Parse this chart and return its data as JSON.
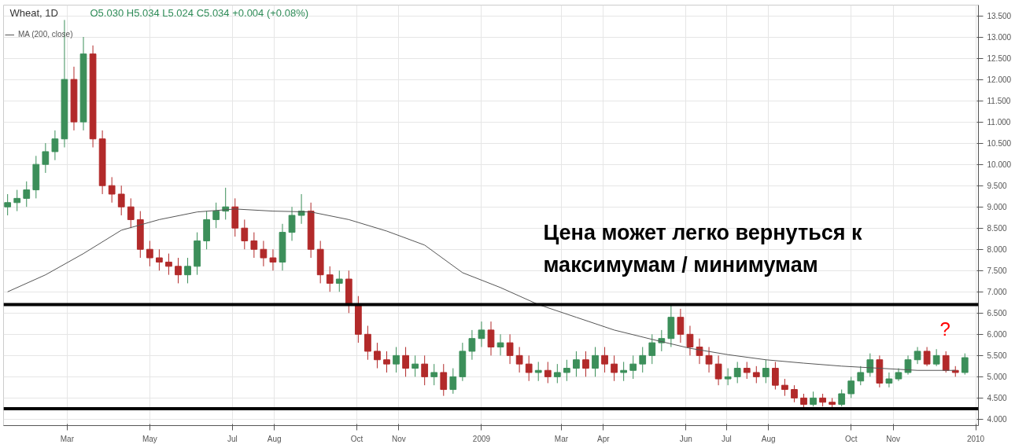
{
  "chart_data": {
    "type": "candlestick",
    "title": "Wheat, 1D",
    "subtitle": "O5.030  H5.034  L5.024  C5.034  +0.004 (+0.08%)",
    "x": [
      "2008-01-17",
      "2008-01-24",
      "2008-01-31",
      "2008-02-07",
      "2008-02-14",
      "2008-02-21",
      "2008-02-28",
      "2008-03-06",
      "2008-03-13",
      "2008-03-20",
      "2008-03-27",
      "2008-04-03",
      "2008-04-10",
      "2008-04-17",
      "2008-04-24",
      "2008-05-01",
      "2008-05-08",
      "2008-05-15",
      "2008-05-22",
      "2008-05-29",
      "2008-06-05",
      "2008-06-12",
      "2008-06-19",
      "2008-06-26",
      "2008-07-03",
      "2008-07-10",
      "2008-07-17",
      "2008-07-24",
      "2008-07-31",
      "2008-08-07",
      "2008-08-14",
      "2008-08-21",
      "2008-08-28",
      "2008-09-04",
      "2008-09-11",
      "2008-09-18",
      "2008-09-25",
      "2008-10-02",
      "2008-10-09",
      "2008-10-16",
      "2008-10-23",
      "2008-10-30",
      "2008-11-06",
      "2008-11-13",
      "2008-11-20",
      "2008-11-27",
      "2008-12-04",
      "2008-12-11",
      "2008-12-18",
      "2008-12-25",
      "2009-01-01",
      "2009-01-08",
      "2009-01-15",
      "2009-01-22",
      "2009-01-29",
      "2009-02-05",
      "2009-02-12",
      "2009-02-19",
      "2009-02-26",
      "2009-03-05",
      "2009-03-12",
      "2009-03-19",
      "2009-03-26",
      "2009-04-02",
      "2009-04-09",
      "2009-04-16",
      "2009-04-23",
      "2009-04-30",
      "2009-05-07",
      "2009-05-14",
      "2009-05-21",
      "2009-05-28",
      "2009-06-04",
      "2009-06-11",
      "2009-06-18",
      "2009-06-25",
      "2009-07-02",
      "2009-07-09",
      "2009-07-16",
      "2009-07-23",
      "2009-07-30",
      "2009-08-06",
      "2009-08-13",
      "2009-08-20",
      "2009-08-27",
      "2009-09-03",
      "2009-09-10",
      "2009-09-17",
      "2009-09-24",
      "2009-10-01",
      "2009-10-08",
      "2009-10-15",
      "2009-10-22",
      "2009-10-29",
      "2009-11-05",
      "2009-11-12",
      "2009-11-19",
      "2009-11-26",
      "2009-12-03",
      "2009-12-10",
      "2009-12-17",
      "2009-12-24"
    ],
    "ohlc": [
      [
        9.0,
        9.3,
        8.8,
        9.1
      ],
      [
        9.1,
        9.4,
        8.9,
        9.2
      ],
      [
        9.2,
        9.6,
        9.0,
        9.4
      ],
      [
        9.4,
        10.2,
        9.2,
        10.0
      ],
      [
        10.0,
        10.5,
        9.8,
        10.3
      ],
      [
        10.3,
        10.8,
        10.1,
        10.6
      ],
      [
        10.6,
        13.4,
        10.4,
        12.0
      ],
      [
        12.0,
        12.3,
        10.8,
        11.0
      ],
      [
        11.0,
        13.0,
        10.8,
        12.6
      ],
      [
        12.6,
        12.8,
        10.4,
        10.6
      ],
      [
        10.6,
        10.8,
        9.3,
        9.5
      ],
      [
        9.5,
        9.7,
        9.1,
        9.3
      ],
      [
        9.3,
        9.5,
        8.8,
        9.0
      ],
      [
        9.0,
        9.2,
        8.5,
        8.7
      ],
      [
        8.7,
        8.9,
        7.8,
        8.0
      ],
      [
        8.0,
        8.2,
        7.6,
        7.8
      ],
      [
        7.8,
        8.0,
        7.5,
        7.7
      ],
      [
        7.7,
        7.9,
        7.4,
        7.6
      ],
      [
        7.6,
        7.8,
        7.2,
        7.4
      ],
      [
        7.4,
        7.8,
        7.2,
        7.6
      ],
      [
        7.6,
        8.4,
        7.4,
        8.2
      ],
      [
        8.2,
        8.9,
        8.0,
        8.7
      ],
      [
        8.7,
        9.1,
        8.5,
        8.9
      ],
      [
        8.9,
        9.45,
        8.7,
        9.0
      ],
      [
        9.0,
        9.2,
        8.3,
        8.5
      ],
      [
        8.5,
        8.7,
        8.0,
        8.2
      ],
      [
        8.2,
        8.4,
        7.8,
        8.0
      ],
      [
        8.0,
        8.2,
        7.6,
        7.8
      ],
      [
        7.8,
        8.0,
        7.5,
        7.7
      ],
      [
        7.7,
        8.6,
        7.5,
        8.4
      ],
      [
        8.4,
        9.0,
        8.2,
        8.8
      ],
      [
        8.8,
        9.3,
        8.6,
        8.9
      ],
      [
        8.9,
        9.1,
        7.8,
        8.0
      ],
      [
        8.0,
        8.2,
        7.2,
        7.4
      ],
      [
        7.4,
        7.6,
        7.0,
        7.2
      ],
      [
        7.2,
        7.5,
        7.0,
        7.3
      ],
      [
        7.3,
        7.5,
        6.5,
        6.7
      ],
      [
        6.7,
        6.9,
        5.8,
        6.0
      ],
      [
        6.0,
        6.2,
        5.4,
        5.6
      ],
      [
        5.6,
        5.8,
        5.2,
        5.4
      ],
      [
        5.4,
        5.6,
        5.1,
        5.3
      ],
      [
        5.3,
        5.7,
        5.1,
        5.5
      ],
      [
        5.5,
        5.7,
        5.0,
        5.2
      ],
      [
        5.2,
        5.5,
        5.0,
        5.3
      ],
      [
        5.3,
        5.5,
        4.8,
        5.0
      ],
      [
        5.0,
        5.3,
        4.8,
        5.1
      ],
      [
        5.1,
        5.3,
        4.55,
        4.7
      ],
      [
        4.7,
        5.2,
        4.6,
        5.0
      ],
      [
        5.0,
        5.8,
        4.9,
        5.6
      ],
      [
        5.6,
        6.1,
        5.4,
        5.9
      ],
      [
        5.9,
        6.3,
        5.7,
        6.1
      ],
      [
        6.1,
        6.3,
        5.5,
        5.7
      ],
      [
        5.7,
        6.0,
        5.5,
        5.8
      ],
      [
        5.8,
        6.0,
        5.3,
        5.5
      ],
      [
        5.5,
        5.7,
        5.1,
        5.3
      ],
      [
        5.3,
        5.5,
        4.9,
        5.1
      ],
      [
        5.1,
        5.35,
        4.9,
        5.15
      ],
      [
        5.15,
        5.35,
        4.85,
        5.0
      ],
      [
        5.0,
        5.3,
        4.85,
        5.1
      ],
      [
        5.1,
        5.4,
        4.9,
        5.2
      ],
      [
        5.2,
        5.6,
        5.0,
        5.4
      ],
      [
        5.4,
        5.6,
        5.0,
        5.2
      ],
      [
        5.2,
        5.7,
        5.0,
        5.5
      ],
      [
        5.5,
        5.7,
        5.1,
        5.3
      ],
      [
        5.3,
        5.5,
        4.9,
        5.1
      ],
      [
        5.1,
        5.35,
        4.9,
        5.15
      ],
      [
        5.15,
        5.5,
        4.95,
        5.3
      ],
      [
        5.3,
        5.7,
        5.1,
        5.5
      ],
      [
        5.5,
        6.0,
        5.3,
        5.8
      ],
      [
        5.8,
        6.1,
        5.6,
        5.9
      ],
      [
        5.9,
        6.7,
        5.7,
        6.4
      ],
      [
        6.4,
        6.6,
        5.8,
        6.0
      ],
      [
        6.0,
        6.2,
        5.5,
        5.7
      ],
      [
        5.7,
        5.9,
        5.3,
        5.5
      ],
      [
        5.5,
        5.7,
        5.1,
        5.3
      ],
      [
        5.3,
        5.5,
        4.8,
        4.95
      ],
      [
        4.95,
        5.2,
        4.8,
        5.0
      ],
      [
        5.0,
        5.35,
        4.85,
        5.2
      ],
      [
        5.2,
        5.35,
        4.95,
        5.1
      ],
      [
        5.1,
        5.25,
        4.85,
        5.0
      ],
      [
        5.0,
        5.4,
        4.85,
        5.2
      ],
      [
        5.2,
        5.35,
        4.7,
        4.8
      ],
      [
        4.8,
        4.95,
        4.55,
        4.7
      ],
      [
        4.7,
        4.8,
        4.4,
        4.5
      ],
      [
        4.5,
        4.6,
        4.25,
        4.35
      ],
      [
        4.35,
        4.65,
        4.3,
        4.5
      ],
      [
        4.5,
        4.6,
        4.3,
        4.4
      ],
      [
        4.4,
        4.5,
        4.25,
        4.35
      ],
      [
        4.35,
        4.7,
        4.3,
        4.6
      ],
      [
        4.6,
        5.0,
        4.5,
        4.9
      ],
      [
        4.9,
        5.25,
        4.8,
        5.1
      ],
      [
        5.1,
        5.55,
        5.0,
        5.4
      ],
      [
        5.4,
        5.5,
        4.75,
        4.85
      ],
      [
        4.85,
        5.1,
        4.75,
        4.95
      ],
      [
        4.95,
        5.2,
        4.9,
        5.1
      ],
      [
        5.1,
        5.5,
        5.05,
        5.4
      ],
      [
        5.4,
        5.7,
        5.3,
        5.6
      ],
      [
        5.6,
        5.7,
        5.25,
        5.3
      ],
      [
        5.3,
        5.65,
        5.25,
        5.5
      ],
      [
        5.5,
        5.6,
        5.1,
        5.15
      ],
      [
        5.15,
        5.25,
        5.0,
        5.1
      ],
      [
        5.1,
        5.55,
        5.05,
        5.45
      ]
    ],
    "colors": [
      "#3c8f5a",
      "#3c8f5a",
      "#3c8f5a",
      "#3c8f5a",
      "#3c8f5a",
      "#3c8f5a",
      "#3c8f5a",
      "#b22a2a",
      "#3c8f5a",
      "#b22a2a",
      "#b22a2a",
      "#b22a2a",
      "#b22a2a",
      "#b22a2a",
      "#b22a2a",
      "#b22a2a",
      "#b22a2a",
      "#b22a2a",
      "#b22a2a",
      "#3c8f5a",
      "#3c8f5a",
      "#3c8f5a",
      "#3c8f5a",
      "#3c8f5a",
      "#b22a2a",
      "#b22a2a",
      "#b22a2a",
      "#b22a2a",
      "#b22a2a",
      "#3c8f5a",
      "#3c8f5a",
      "#3c8f5a",
      "#b22a2a",
      "#b22a2a",
      "#b22a2a",
      "#3c8f5a",
      "#b22a2a",
      "#b22a2a",
      "#b22a2a",
      "#b22a2a",
      "#b22a2a",
      "#3c8f5a",
      "#b22a2a",
      "#3c8f5a",
      "#b22a2a",
      "#3c8f5a",
      "#b22a2a",
      "#3c8f5a",
      "#3c8f5a",
      "#3c8f5a",
      "#3c8f5a",
      "#b22a2a",
      "#3c8f5a",
      "#b22a2a",
      "#b22a2a",
      "#b22a2a",
      "#3c8f5a",
      "#b22a2a",
      "#3c8f5a",
      "#3c8f5a",
      "#3c8f5a",
      "#b22a2a",
      "#3c8f5a",
      "#b22a2a",
      "#b22a2a",
      "#3c8f5a",
      "#3c8f5a",
      "#3c8f5a",
      "#3c8f5a",
      "#3c8f5a",
      "#3c8f5a",
      "#b22a2a",
      "#b22a2a",
      "#b22a2a",
      "#b22a2a",
      "#b22a2a",
      "#3c8f5a",
      "#3c8f5a",
      "#b22a2a",
      "#b22a2a",
      "#3c8f5a",
      "#b22a2a",
      "#b22a2a",
      "#b22a2a",
      "#b22a2a",
      "#3c8f5a",
      "#b22a2a",
      "#b22a2a",
      "#3c8f5a",
      "#3c8f5a",
      "#3c8f5a",
      "#3c8f5a",
      "#b22a2a",
      "#3c8f5a",
      "#3c8f5a",
      "#3c8f5a",
      "#3c8f5a",
      "#b22a2a",
      "#3c8f5a",
      "#b22a2a",
      "#b22a2a",
      "#3c8f5a"
    ],
    "series": [
      {
        "type": "line",
        "name": "MA (200, close)",
        "color": "#555555",
        "x": [
          "2008-01-17",
          "2008-02-14",
          "2008-03-13",
          "2008-04-10",
          "2008-05-08",
          "2008-06-05",
          "2008-07-03",
          "2008-07-31",
          "2008-08-28",
          "2008-09-25",
          "2008-10-23",
          "2008-11-20",
          "2008-12-18",
          "2009-01-15",
          "2009-02-12",
          "2009-03-12",
          "2009-04-09",
          "2009-05-07",
          "2009-06-04",
          "2009-07-02",
          "2009-07-30",
          "2009-08-27",
          "2009-09-24",
          "2009-10-22",
          "2009-11-19",
          "2009-12-17"
        ],
        "values": [
          7.0,
          7.4,
          7.9,
          8.45,
          8.7,
          8.88,
          8.95,
          8.9,
          8.88,
          8.7,
          8.43,
          8.1,
          7.45,
          7.1,
          6.7,
          6.4,
          6.1,
          5.88,
          5.67,
          5.52,
          5.4,
          5.32,
          5.25,
          5.2,
          5.15,
          5.15
        ]
      }
    ],
    "xlim": [
      "2008-01-14",
      "2010-01-03"
    ],
    "xticks": [
      {
        "value": "2008-03-01",
        "label": "Mar"
      },
      {
        "value": "2008-05-01",
        "label": "May"
      },
      {
        "value": "2008-07-01",
        "label": "Jul"
      },
      {
        "value": "2008-08-01",
        "label": "Aug"
      },
      {
        "value": "2008-10-01",
        "label": "Oct"
      },
      {
        "value": "2008-11-01",
        "label": "Nov"
      },
      {
        "value": "2009-01-01",
        "label": "2009"
      },
      {
        "value": "2009-03-01",
        "label": "Mar"
      },
      {
        "value": "2009-04-01",
        "label": "Apr"
      },
      {
        "value": "2009-06-01",
        "label": "Jun"
      },
      {
        "value": "2009-07-01",
        "label": "Jul"
      },
      {
        "value": "2009-08-01",
        "label": "Aug"
      },
      {
        "value": "2009-10-01",
        "label": "Oct"
      },
      {
        "value": "2009-11-01",
        "label": "Nov"
      },
      {
        "value": "2010-01-01",
        "label": "2010"
      }
    ],
    "ylim": [
      3.85,
      13.75
    ],
    "yticks": [
      {
        "value": 4,
        "label": "4.000"
      },
      {
        "value": 4.5,
        "label": "4.500"
      },
      {
        "value": 5,
        "label": "5.000"
      },
      {
        "value": 5.5,
        "label": "5.500"
      },
      {
        "value": 6,
        "label": "6.000"
      },
      {
        "value": 6.5,
        "label": "6.500"
      },
      {
        "value": 7,
        "label": "7.000"
      },
      {
        "value": 7.5,
        "label": "7.500"
      },
      {
        "value": 8,
        "label": "8.000"
      },
      {
        "value": 8.5,
        "label": "8.500"
      },
      {
        "value": 9,
        "label": "9.000"
      },
      {
        "value": 9.5,
        "label": "9.500"
      },
      {
        "value": 10,
        "label": "10.000"
      },
      {
        "value": 10.5,
        "label": "10.500"
      },
      {
        "value": 11,
        "label": "11.000"
      },
      {
        "value": 11.5,
        "label": "11.500"
      },
      {
        "value": 12,
        "label": "12.000"
      },
      {
        "value": 12.5,
        "label": "12.500"
      },
      {
        "value": 13,
        "label": "13.000"
      },
      {
        "value": 13.5,
        "label": "13.500"
      }
    ],
    "ref_lines": [
      {
        "axis": "y",
        "value": 6.7,
        "color": "#000000"
      },
      {
        "axis": "y",
        "value": 4.25,
        "color": "#000000"
      }
    ],
    "annotations": [
      "Цена может легко вернуться к\nмаксимумам / минимумам",
      "?"
    ],
    "grid": true,
    "legend": "top left"
  }
}
